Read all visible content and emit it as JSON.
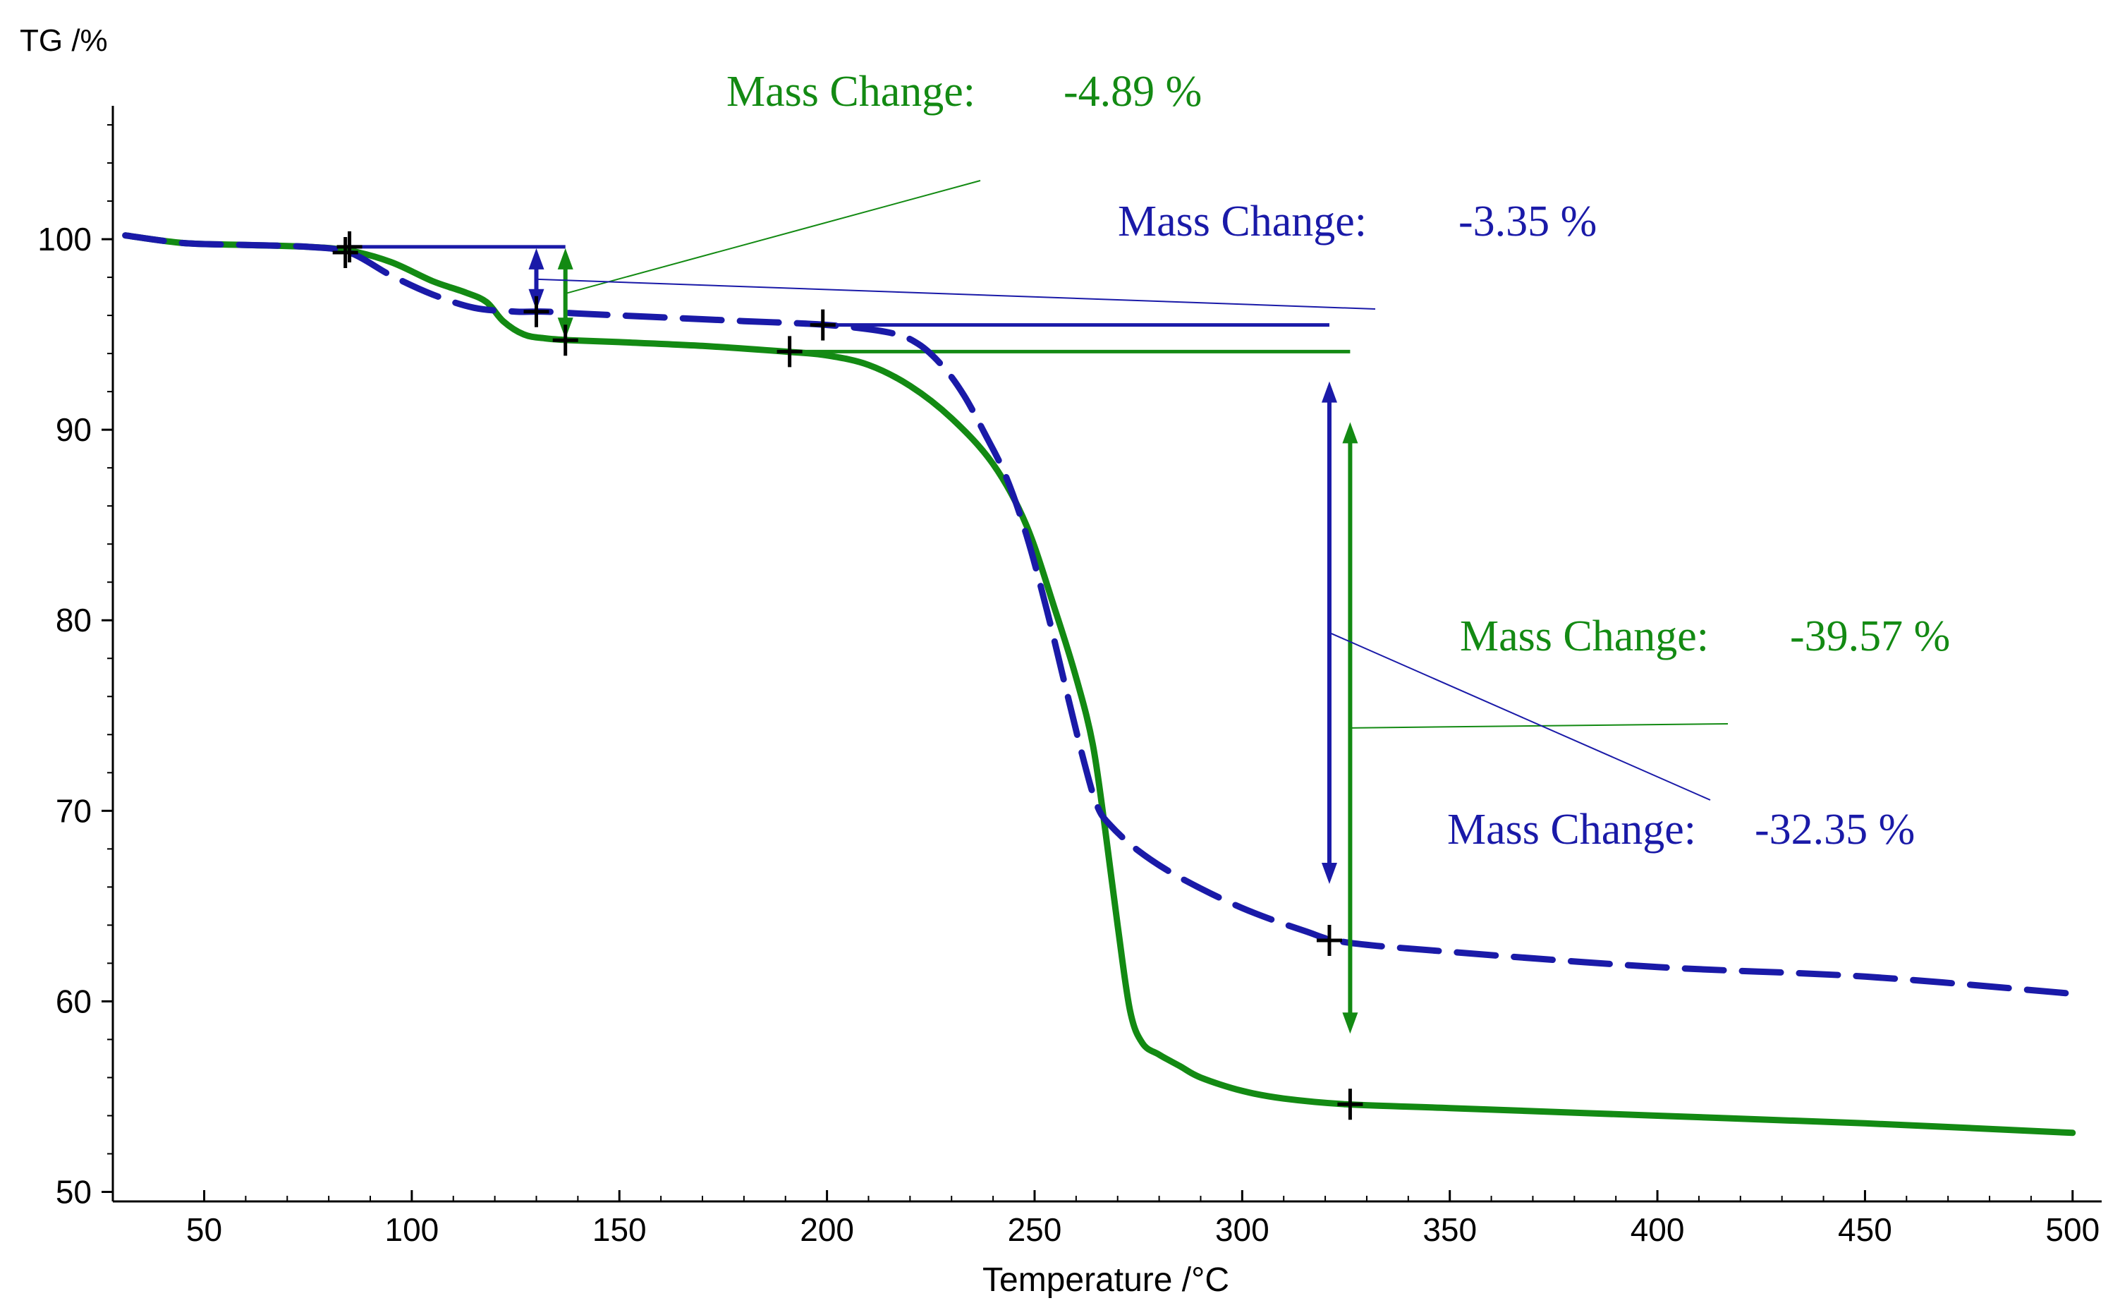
{
  "chart_data": {
    "type": "line",
    "ylabel": "TG /%",
    "xlabel": "Temperature /°C",
    "xlim": [
      28,
      507
    ],
    "ylim": [
      49.5,
      107
    ],
    "x_ticks": [
      50,
      100,
      150,
      200,
      250,
      300,
      350,
      400,
      450,
      500
    ],
    "y_ticks": [
      50,
      60,
      70,
      80,
      90,
      100
    ],
    "x_tick_labels": [
      "50",
      "100",
      "150",
      "200",
      "250",
      "300",
      "350",
      "400",
      "450",
      "500"
    ],
    "y_tick_labels": [
      "50",
      "60",
      "70",
      "80",
      "90",
      "100"
    ],
    "grid": false,
    "colors": {
      "green": "#138a13",
      "blue": "#1a1aa8",
      "marker": "#000000"
    },
    "series": [
      {
        "name": "green-solid",
        "color": "#138a13",
        "style": "solid",
        "x": [
          31,
          45,
          60,
          75,
          85,
          95,
          105,
          113,
          118,
          122,
          127,
          132,
          138,
          150,
          170,
          190,
          200,
          210,
          220,
          230,
          240,
          248,
          255,
          260,
          264,
          267,
          270,
          273,
          276,
          280,
          285,
          290,
          300,
          310,
          325,
          350,
          400,
          450,
          500
        ],
        "y": [
          100.2,
          99.8,
          99.7,
          99.6,
          99.4,
          98.8,
          97.8,
          97.2,
          96.7,
          95.7,
          95.0,
          94.8,
          94.7,
          94.6,
          94.4,
          94.1,
          93.9,
          93.4,
          92.3,
          90.6,
          88.2,
          85.0,
          80.5,
          77.0,
          73.5,
          69.0,
          64.0,
          59.5,
          57.8,
          57.2,
          56.6,
          56.0,
          55.3,
          54.9,
          54.6,
          54.4,
          54.0,
          53.6,
          53.1
        ]
      },
      {
        "name": "blue-dashed",
        "color": "#1a1aa8",
        "style": "dashed",
        "x": [
          31,
          45,
          60,
          75,
          85,
          95,
          105,
          115,
          125,
          132,
          140,
          160,
          180,
          200,
          215,
          222,
          228,
          233,
          238,
          243,
          248,
          253,
          258,
          262,
          265,
          268,
          275,
          285,
          300,
          315,
          325,
          350,
          400,
          450,
          500
        ],
        "y": [
          100.2,
          99.8,
          99.7,
          99.6,
          99.3,
          98.1,
          97.1,
          96.4,
          96.2,
          96.2,
          96.1,
          95.9,
          95.7,
          95.5,
          95.1,
          94.5,
          93.3,
          91.8,
          89.8,
          87.6,
          84.5,
          80.5,
          76.0,
          72.5,
          70.3,
          69.3,
          67.9,
          66.5,
          64.9,
          63.7,
          63.1,
          62.6,
          61.8,
          61.3,
          60.4
        ]
      }
    ],
    "markers": [
      {
        "series": "green-solid",
        "x": 85,
        "y": 99.6
      },
      {
        "series": "green-solid",
        "x": 137,
        "y": 94.7
      },
      {
        "series": "green-solid",
        "x": 191,
        "y": 94.1
      },
      {
        "series": "green-solid",
        "x": 326,
        "y": 54.6
      },
      {
        "series": "blue-dashed",
        "x": 84,
        "y": 99.3
      },
      {
        "series": "blue-dashed",
        "x": 130,
        "y": 96.2
      },
      {
        "series": "blue-dashed",
        "x": 199,
        "y": 95.5
      },
      {
        "series": "blue-dashed",
        "x": 321,
        "y": 63.2
      }
    ],
    "mass_change_annotations": [
      {
        "label": "Mass Change:",
        "value": "-4.89 %",
        "color": "#138a13",
        "step_from_y": 99.6,
        "step_to_y": 94.7,
        "start_x": 85,
        "arrow_x": 137,
        "arrow_top_y": 99.6,
        "arrow_bottom_y": 94.7,
        "ref_line_end_x": 137
      },
      {
        "label": "Mass Change:",
        "value": "-3.35 %",
        "color": "#1a1aa8",
        "step_from_y": 99.6,
        "step_to_y": 96.2,
        "start_x": 84,
        "arrow_x": 130,
        "arrow_top_y": 99.6,
        "arrow_bottom_y": 96.2,
        "ref_line_end_x": 137
      },
      {
        "label": "Mass Change:",
        "value": "-39.57 %",
        "color": "#138a13",
        "start_x": 191,
        "ref_y": 94.1,
        "ref_line_end_x": 326,
        "arrow_x": 326,
        "arrow_top_y": 94.1,
        "arrow_bottom_y": 54.6
      },
      {
        "label": "Mass Change:",
        "value": "-32.35 %",
        "color": "#1a1aa8",
        "start_x": 199,
        "ref_y": 95.5,
        "ref_line_end_x": 321,
        "arrow_x": 321,
        "arrow_top_y": 95.5,
        "arrow_bottom_y": 63.2
      }
    ]
  }
}
